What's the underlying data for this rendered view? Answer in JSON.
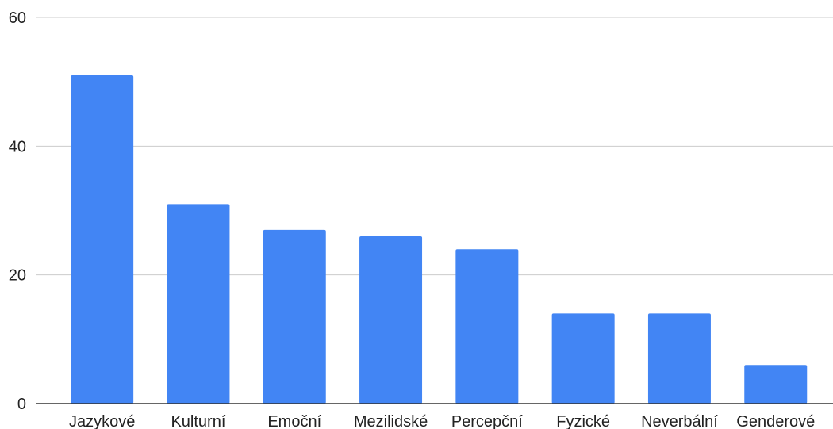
{
  "chart_data": {
    "type": "bar",
    "title": "",
    "xlabel": "",
    "ylabel": "",
    "categories": [
      "Jazykové",
      "Kulturní",
      "Emoční",
      "Mezilidské",
      "Percepční",
      "Fyzické",
      "Neverbální",
      "Genderové"
    ],
    "values": [
      51,
      31,
      27,
      26,
      24,
      14,
      14,
      6
    ],
    "ylim": [
      0,
      60
    ],
    "yticks": [
      0,
      20,
      40,
      60
    ],
    "grid": true,
    "legend": "none",
    "bar_color": "#4285F4",
    "gridline_color": "#CCCCCC",
    "axis_color": "#333333",
    "text_color": "#222222"
  }
}
